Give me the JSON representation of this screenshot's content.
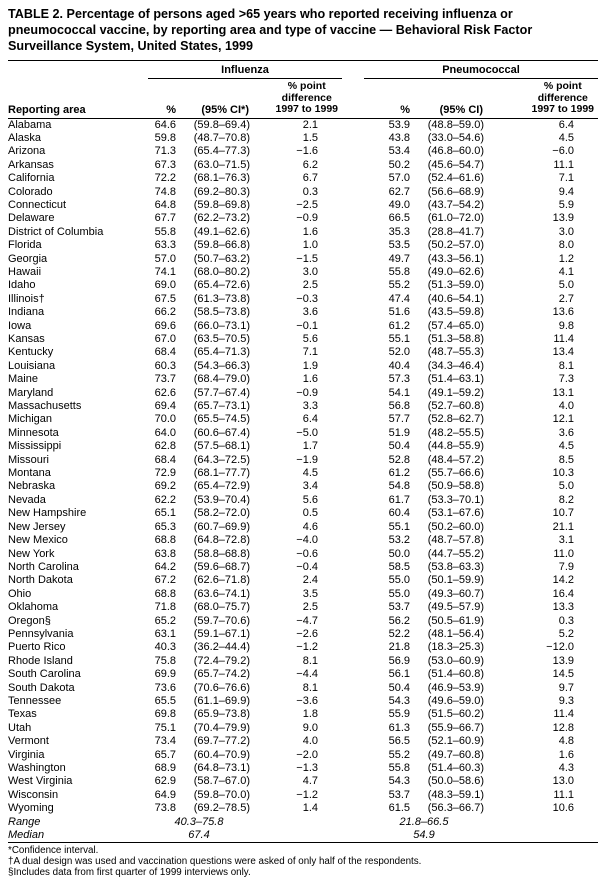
{
  "title": "TABLE 2. Percentage of persons aged >65 years who reported receiving influenza or pneumococcal vaccine, by reporting area and type of vaccine — Behavioral Risk Factor Surveillance System, United States, 1999",
  "columns": {
    "reporting_area": "Reporting area",
    "influenza_group": "Influenza",
    "pneumococcal_group": "Pneumococcal",
    "pct": "%",
    "ci_influenza": "(95% CI*)",
    "ci_pneumococcal": "(95% CI)",
    "diff_header": [
      "% point",
      "difference",
      "1997 to 1999"
    ]
  },
  "rows": [
    [
      "Alabama",
      "64.6",
      "(59.8–69.4)",
      "2.1",
      "53.9",
      "(48.8–59.0)",
      "6.4"
    ],
    [
      "Alaska",
      "59.8",
      "(48.7–70.8)",
      "1.5",
      "43.8",
      "(33.0–54.6)",
      "4.5"
    ],
    [
      "Arizona",
      "71.3",
      "(65.4–77.3)",
      "−1.6",
      "53.4",
      "(46.8–60.0)",
      "−6.0"
    ],
    [
      "Arkansas",
      "67.3",
      "(63.0–71.5)",
      "6.2",
      "50.2",
      "(45.6–54.7)",
      "11.1"
    ],
    [
      "California",
      "72.2",
      "(68.1–76.3)",
      "6.7",
      "57.0",
      "(52.4–61.6)",
      "7.1"
    ],
    [
      "Colorado",
      "74.8",
      "(69.2–80.3)",
      "0.3",
      "62.7",
      "(56.6–68.9)",
      "9.4"
    ],
    [
      "Connecticut",
      "64.8",
      "(59.8–69.8)",
      "−2.5",
      "49.0",
      "(43.7–54.2)",
      "5.9"
    ],
    [
      "Delaware",
      "67.7",
      "(62.2–73.2)",
      "−0.9",
      "66.5",
      "(61.0–72.0)",
      "13.9"
    ],
    [
      "District of Columbia",
      "55.8",
      "(49.1–62.6)",
      "1.6",
      "35.3",
      "(28.8–41.7)",
      "3.0"
    ],
    [
      "Florida",
      "63.3",
      "(59.8–66.8)",
      "1.0",
      "53.5",
      "(50.2–57.0)",
      "8.0"
    ],
    [
      "Georgia",
      "57.0",
      "(50.7–63.2)",
      "−1.5",
      "49.7",
      "(43.3–56.1)",
      "1.2"
    ],
    [
      "Hawaii",
      "74.1",
      "(68.0–80.2)",
      "3.0",
      "55.8",
      "(49.0–62.6)",
      "4.1"
    ],
    [
      "Idaho",
      "69.0",
      "(65.4–72.6)",
      "2.5",
      "55.2",
      "(51.3–59.0)",
      "5.0"
    ],
    [
      "Illinois†",
      "67.5",
      "(61.3–73.8)",
      "−0.3",
      "47.4",
      "(40.6–54.1)",
      "2.7"
    ],
    [
      "Indiana",
      "66.2",
      "(58.5–73.8)",
      "3.6",
      "51.6",
      "(43.5–59.8)",
      "13.6"
    ],
    [
      "Iowa",
      "69.6",
      "(66.0–73.1)",
      "−0.1",
      "61.2",
      "(57.4–65.0)",
      "9.8"
    ],
    [
      "Kansas",
      "67.0",
      "(63.5–70.5)",
      "5.6",
      "55.1",
      "(51.3–58.8)",
      "11.4"
    ],
    [
      "Kentucky",
      "68.4",
      "(65.4–71.3)",
      "7.1",
      "52.0",
      "(48.7–55.3)",
      "13.4"
    ],
    [
      "Louisiana",
      "60.3",
      "(54.3–66.3)",
      "1.9",
      "40.4",
      "(34.3–46.4)",
      "8.1"
    ],
    [
      "Maine",
      "73.7",
      "(68.4–79.0)",
      "1.6",
      "57.3",
      "(51.4–63.1)",
      "7.3"
    ],
    [
      "Maryland",
      "62.6",
      "(57.7–67.4)",
      "−0.9",
      "54.1",
      "(49.1–59.2)",
      "13.1"
    ],
    [
      "Massachusetts",
      "69.4",
      "(65.7–73.1)",
      "3.3",
      "56.8",
      "(52.7–60.8)",
      "4.0"
    ],
    [
      "Michigan",
      "70.0",
      "(65.5–74.5)",
      "6.4",
      "57.7",
      "(52.8–62.7)",
      "12.1"
    ],
    [
      "Minnesota",
      "64.0",
      "(60.6–67.4)",
      "−5.0",
      "51.9",
      "(48.2–55.5)",
      "3.6"
    ],
    [
      "Mississippi",
      "62.8",
      "(57.5–68.1)",
      "1.7",
      "50.4",
      "(44.8–55.9)",
      "4.5"
    ],
    [
      "Missouri",
      "68.4",
      "(64.3–72.5)",
      "−1.9",
      "52.8",
      "(48.4–57.2)",
      "8.5"
    ],
    [
      "Montana",
      "72.9",
      "(68.1–77.7)",
      "4.5",
      "61.2",
      "(55.7–66.6)",
      "10.3"
    ],
    [
      "Nebraska",
      "69.2",
      "(65.4–72.9)",
      "3.4",
      "54.8",
      "(50.9–58.8)",
      "5.0"
    ],
    [
      "Nevada",
      "62.2",
      "(53.9–70.4)",
      "5.6",
      "61.7",
      "(53.3–70.1)",
      "8.2"
    ],
    [
      "New Hampshire",
      "65.1",
      "(58.2–72.0)",
      "0.5",
      "60.4",
      "(53.1–67.6)",
      "10.7"
    ],
    [
      "New Jersey",
      "65.3",
      "(60.7–69.9)",
      "4.6",
      "55.1",
      "(50.2–60.0)",
      "21.1"
    ],
    [
      "New Mexico",
      "68.8",
      "(64.8–72.8)",
      "−4.0",
      "53.2",
      "(48.7–57.8)",
      "3.1"
    ],
    [
      "New York",
      "63.8",
      "(58.8–68.8)",
      "−0.6",
      "50.0",
      "(44.7–55.2)",
      "11.0"
    ],
    [
      "North Carolina",
      "64.2",
      "(59.6–68.7)",
      "−0.4",
      "58.5",
      "(53.8–63.3)",
      "7.9"
    ],
    [
      "North Dakota",
      "67.2",
      "(62.6–71.8)",
      "2.4",
      "55.0",
      "(50.1–59.9)",
      "14.2"
    ],
    [
      "Ohio",
      "68.8",
      "(63.6–74.1)",
      "3.5",
      "55.0",
      "(49.3–60.7)",
      "16.4"
    ],
    [
      "Oklahoma",
      "71.8",
      "(68.0–75.7)",
      "2.5",
      "53.7",
      "(49.5–57.9)",
      "13.3"
    ],
    [
      "Oregon§",
      "65.2",
      "(59.7–70.6)",
      "−4.7",
      "56.2",
      "(50.5–61.9)",
      "0.3"
    ],
    [
      "Pennsylvania",
      "63.1",
      "(59.1–67.1)",
      "−2.6",
      "52.2",
      "(48.1–56.4)",
      "5.2"
    ],
    [
      "Puerto Rico",
      "40.3",
      "(36.2–44.4)",
      "−1.2",
      "21.8",
      "(18.3–25.3)",
      "−12.0"
    ],
    [
      "Rhode Island",
      "75.8",
      "(72.4–79.2)",
      "8.1",
      "56.9",
      "(53.0–60.9)",
      "13.9"
    ],
    [
      "South Carolina",
      "69.9",
      "(65.7–74.2)",
      "−4.4",
      "56.1",
      "(51.4–60.8)",
      "14.5"
    ],
    [
      "South Dakota",
      "73.6",
      "(70.6–76.6)",
      "8.1",
      "50.4",
      "(46.9–53.9)",
      "9.7"
    ],
    [
      "Tennessee",
      "65.5",
      "(61.1–69.9)",
      "−3.6",
      "54.3",
      "(49.6–59.0)",
      "9.3"
    ],
    [
      "Texas",
      "69.8",
      "(65.9–73.8)",
      "1.8",
      "55.9",
      "(51.5–60.2)",
      "11.4"
    ],
    [
      "Utah",
      "75.1",
      "(70.4–79.9)",
      "9.0",
      "61.3",
      "(55.9–66.7)",
      "12.8"
    ],
    [
      "Vermont",
      "73.4",
      "(69.7–77.2)",
      "4.0",
      "56.5",
      "(52.1–60.9)",
      "4.8"
    ],
    [
      "Virginia",
      "65.7",
      "(60.4–70.9)",
      "−2.0",
      "55.2",
      "(49.7–60.8)",
      "1.6"
    ],
    [
      "Washington",
      "68.9",
      "(64.8–73.1)",
      "−1.3",
      "55.8",
      "(51.4–60.3)",
      "4.3"
    ],
    [
      "West Virginia",
      "62.9",
      "(58.7–67.0)",
      "4.7",
      "54.3",
      "(50.0–58.6)",
      "13.0"
    ],
    [
      "Wisconsin",
      "64.9",
      "(59.8–70.0)",
      "−1.2",
      "53.7",
      "(48.3–59.1)",
      "11.1"
    ],
    [
      "Wyoming",
      "73.8",
      "(69.2–78.5)",
      "1.4",
      "61.5",
      "(56.3–66.7)",
      "10.6"
    ]
  ],
  "summary_rows": [
    {
      "label": "Range",
      "influenza": "40.3–75.8",
      "pneumococcal": "21.8–66.5"
    },
    {
      "label": "Median",
      "influenza": "67.4",
      "pneumococcal": "54.9"
    }
  ],
  "footnotes": [
    "*Confidence interval.",
    "†A dual design was used and vaccination questions were asked of only half of the respondents.",
    "§Includes data from first quarter of 1999 interviews only."
  ]
}
